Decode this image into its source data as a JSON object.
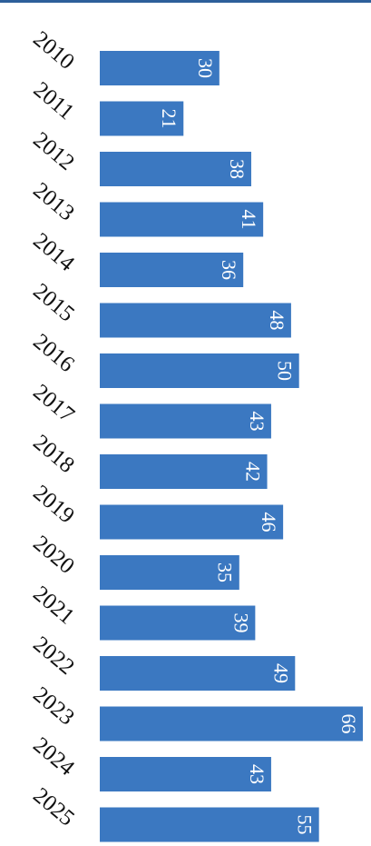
{
  "chart_data": {
    "type": "bar",
    "orientation": "horizontal",
    "categories": [
      "2010",
      "2011",
      "2012",
      "2013",
      "2014",
      "2015",
      "2016",
      "2017",
      "2018",
      "2019",
      "2020",
      "2021",
      "2022",
      "2023",
      "2024",
      "2025"
    ],
    "values": [
      30,
      21,
      38,
      41,
      36,
      48,
      50,
      43,
      42,
      46,
      35,
      39,
      49,
      66,
      43,
      55
    ],
    "color": "#3b78c1"
  }
}
